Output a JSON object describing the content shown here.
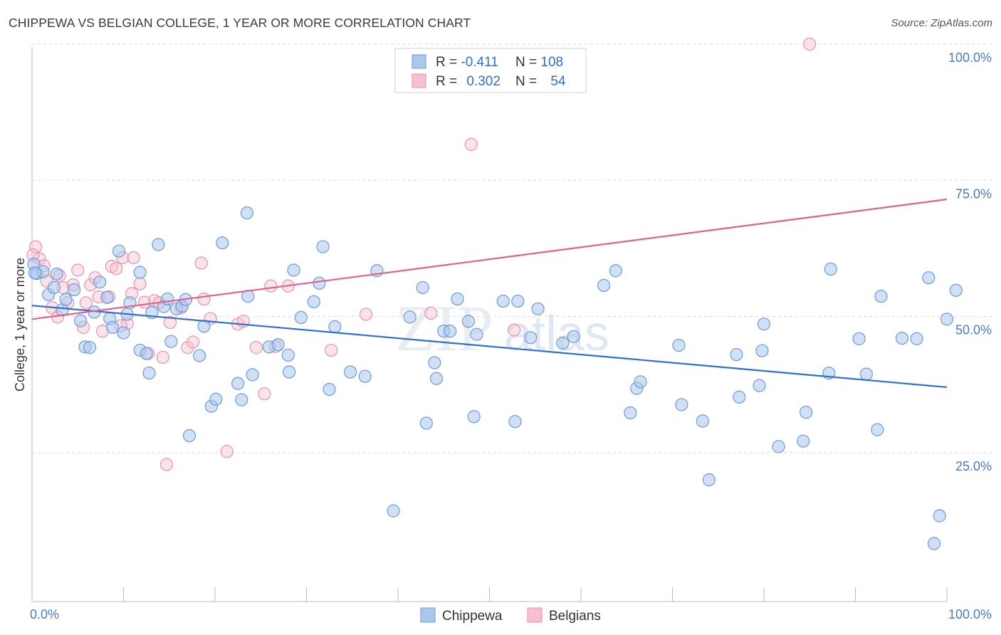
{
  "title": "CHIPPEWA VS BELGIAN COLLEGE, 1 YEAR OR MORE CORRELATION CHART",
  "source": "Source: ZipAtlas.com",
  "watermark": "ZIPatlas",
  "colors": {
    "blue_fill": "#aac8ee",
    "blue_stroke": "#6e9ad8",
    "blue_line": "#2f6fcd",
    "pink_fill": "#f6c0d0",
    "pink_stroke": "#e892ac",
    "pink_line": "#e0608e",
    "axis_text": "#4a79c7",
    "grid": "#d9d9d9"
  },
  "legend": {
    "rows": [
      {
        "r_label": "R = ",
        "r_value": "-0.411",
        "n_label": "N = ",
        "n_value": "108",
        "series": "Chippewa"
      },
      {
        "r_label": "R = ",
        "r_value": "0.302",
        "n_label": "N = ",
        "n_value": "54",
        "series": "Belgians"
      }
    ]
  },
  "chart_data": {
    "type": "scatter",
    "title": "CHIPPEWA VS BELGIAN COLLEGE, 1 YEAR OR MORE CORRELATION CHART",
    "xlabel": "",
    "ylabel": "College, 1 year or more",
    "xlim": [
      0,
      100
    ],
    "ylim": [
      0,
      100
    ],
    "x_tick_labels": [
      "0.0%",
      "100.0%"
    ],
    "y_tick_labels": [
      "25.0%",
      "50.0%",
      "75.0%",
      "100.0%"
    ],
    "y_ticks": [
      25,
      50,
      75,
      100
    ],
    "grid": true,
    "legend_position": "bottom-center",
    "series": [
      {
        "name": "Chippewa",
        "color": "#aac8ee",
        "trend": {
          "x": [
            0,
            100
          ],
          "y": [
            52.0,
            37.0
          ]
        },
        "points": [
          [
            0.2,
            59.6
          ],
          [
            0.5,
            57.9
          ],
          [
            1.2,
            58.2
          ],
          [
            1.8,
            54.0
          ],
          [
            2.4,
            55.3
          ],
          [
            2.7,
            57.8
          ],
          [
            3.3,
            51.2
          ],
          [
            3.7,
            53.1
          ],
          [
            4.6,
            54.9
          ],
          [
            5.3,
            49.2
          ],
          [
            5.8,
            44.4
          ],
          [
            6.3,
            44.3
          ],
          [
            6.8,
            50.8
          ],
          [
            7.4,
            56.3
          ],
          [
            8.2,
            53.5
          ],
          [
            8.5,
            49.6
          ],
          [
            8.8,
            48.0
          ],
          [
            9.5,
            62.0
          ],
          [
            10.0,
            47.0
          ],
          [
            10.4,
            50.4
          ],
          [
            10.7,
            52.5
          ],
          [
            11.8,
            58.1
          ],
          [
            11.8,
            43.8
          ],
          [
            12.5,
            43.2
          ],
          [
            12.8,
            39.6
          ],
          [
            13.1,
            50.7
          ],
          [
            13.8,
            63.2
          ],
          [
            14.4,
            51.8
          ],
          [
            14.8,
            53.2
          ],
          [
            15.2,
            45.4
          ],
          [
            15.8,
            51.4
          ],
          [
            16.4,
            51.9
          ],
          [
            16.8,
            53.1
          ],
          [
            17.2,
            28.1
          ],
          [
            18.3,
            42.8
          ],
          [
            18.8,
            48.2
          ],
          [
            19.6,
            33.5
          ],
          [
            20.1,
            34.8
          ],
          [
            20.8,
            63.5
          ],
          [
            22.5,
            37.7
          ],
          [
            22.9,
            34.7
          ],
          [
            23.5,
            69.0
          ],
          [
            23.6,
            53.7
          ],
          [
            24.1,
            39.3
          ],
          [
            25.9,
            44.4
          ],
          [
            26.9,
            44.8
          ],
          [
            28.0,
            42.9
          ],
          [
            28.1,
            39.8
          ],
          [
            28.6,
            58.5
          ],
          [
            29.4,
            49.8
          ],
          [
            30.8,
            52.7
          ],
          [
            31.4,
            56.1
          ],
          [
            31.8,
            62.8
          ],
          [
            32.5,
            36.6
          ],
          [
            33.1,
            48.1
          ],
          [
            34.8,
            39.8
          ],
          [
            36.4,
            39.0
          ],
          [
            37.7,
            58.4
          ],
          [
            39.5,
            14.3
          ],
          [
            41.3,
            49.9
          ],
          [
            42.7,
            55.3
          ],
          [
            43.1,
            30.4
          ],
          [
            44.0,
            41.5
          ],
          [
            44.2,
            38.6
          ],
          [
            45.0,
            47.3
          ],
          [
            45.7,
            47.3
          ],
          [
            46.5,
            53.2
          ],
          [
            47.7,
            49.1
          ],
          [
            48.3,
            31.6
          ],
          [
            48.6,
            46.7
          ],
          [
            51.5,
            52.8
          ],
          [
            52.8,
            30.7
          ],
          [
            53.1,
            52.8
          ],
          [
            54.5,
            46.1
          ],
          [
            55.3,
            51.4
          ],
          [
            58.0,
            45.1
          ],
          [
            59.2,
            46.3
          ],
          [
            62.5,
            55.7
          ],
          [
            63.8,
            58.4
          ],
          [
            65.4,
            32.3
          ],
          [
            66.1,
            36.8
          ],
          [
            66.5,
            38.0
          ],
          [
            70.7,
            44.7
          ],
          [
            71.0,
            33.8
          ],
          [
            73.3,
            30.8
          ],
          [
            74.0,
            20.0
          ],
          [
            77.0,
            43.0
          ],
          [
            77.3,
            35.2
          ],
          [
            79.5,
            37.3
          ],
          [
            79.8,
            43.7
          ],
          [
            80.0,
            48.6
          ],
          [
            81.6,
            26.1
          ],
          [
            84.3,
            27.1
          ],
          [
            84.6,
            32.4
          ],
          [
            87.1,
            39.6
          ],
          [
            87.3,
            58.7
          ],
          [
            90.4,
            45.9
          ],
          [
            91.2,
            39.4
          ],
          [
            92.4,
            29.2
          ],
          [
            92.8,
            53.7
          ],
          [
            95.1,
            46.0
          ],
          [
            96.7,
            45.9
          ],
          [
            98.0,
            57.1
          ],
          [
            98.6,
            8.3
          ],
          [
            99.2,
            13.4
          ],
          [
            100.0,
            49.5
          ],
          [
            101.0,
            54.8
          ],
          [
            0.3,
            58.0
          ]
        ]
      },
      {
        "name": "Belgians",
        "color": "#f6c0d0",
        "trend": {
          "x": [
            0,
            100
          ],
          "y": [
            49.5,
            71.5
          ]
        },
        "points": [
          [
            0.4,
            62.8
          ],
          [
            0.8,
            60.6
          ],
          [
            1.3,
            59.3
          ],
          [
            1.6,
            56.5
          ],
          [
            2.2,
            51.6
          ],
          [
            2.8,
            49.9
          ],
          [
            3.4,
            55.3
          ],
          [
            3.9,
            52.5
          ],
          [
            4.5,
            55.8
          ],
          [
            5.0,
            58.5
          ],
          [
            5.6,
            48.0
          ],
          [
            5.9,
            52.5
          ],
          [
            6.4,
            55.8
          ],
          [
            6.9,
            57.1
          ],
          [
            7.3,
            53.6
          ],
          [
            7.7,
            47.3
          ],
          [
            8.4,
            53.6
          ],
          [
            8.7,
            59.2
          ],
          [
            9.2,
            58.8
          ],
          [
            9.9,
            60.8
          ],
          [
            10.4,
            48.7
          ],
          [
            10.9,
            54.2
          ],
          [
            11.1,
            60.8
          ],
          [
            11.8,
            56.0
          ],
          [
            12.3,
            52.6
          ],
          [
            12.7,
            43.2
          ],
          [
            13.4,
            52.9
          ],
          [
            13.9,
            52.5
          ],
          [
            14.3,
            42.5
          ],
          [
            14.7,
            22.8
          ],
          [
            15.1,
            48.9
          ],
          [
            16.3,
            51.6
          ],
          [
            17.0,
            44.3
          ],
          [
            17.6,
            45.3
          ],
          [
            18.5,
            59.8
          ],
          [
            18.8,
            53.2
          ],
          [
            19.5,
            49.6
          ],
          [
            21.3,
            25.2
          ],
          [
            22.5,
            48.6
          ],
          [
            23.1,
            49.1
          ],
          [
            24.5,
            44.3
          ],
          [
            25.4,
            35.8
          ],
          [
            26.1,
            55.6
          ],
          [
            26.6,
            44.5
          ],
          [
            28.0,
            55.6
          ],
          [
            32.7,
            43.8
          ],
          [
            36.5,
            50.4
          ],
          [
            43.6,
            50.6
          ],
          [
            48.0,
            81.6
          ],
          [
            52.7,
            47.5
          ],
          [
            0.1,
            61.3
          ],
          [
            3.0,
            57.5
          ],
          [
            9.7,
            48.3
          ],
          [
            85.0,
            100.0
          ]
        ]
      }
    ]
  }
}
